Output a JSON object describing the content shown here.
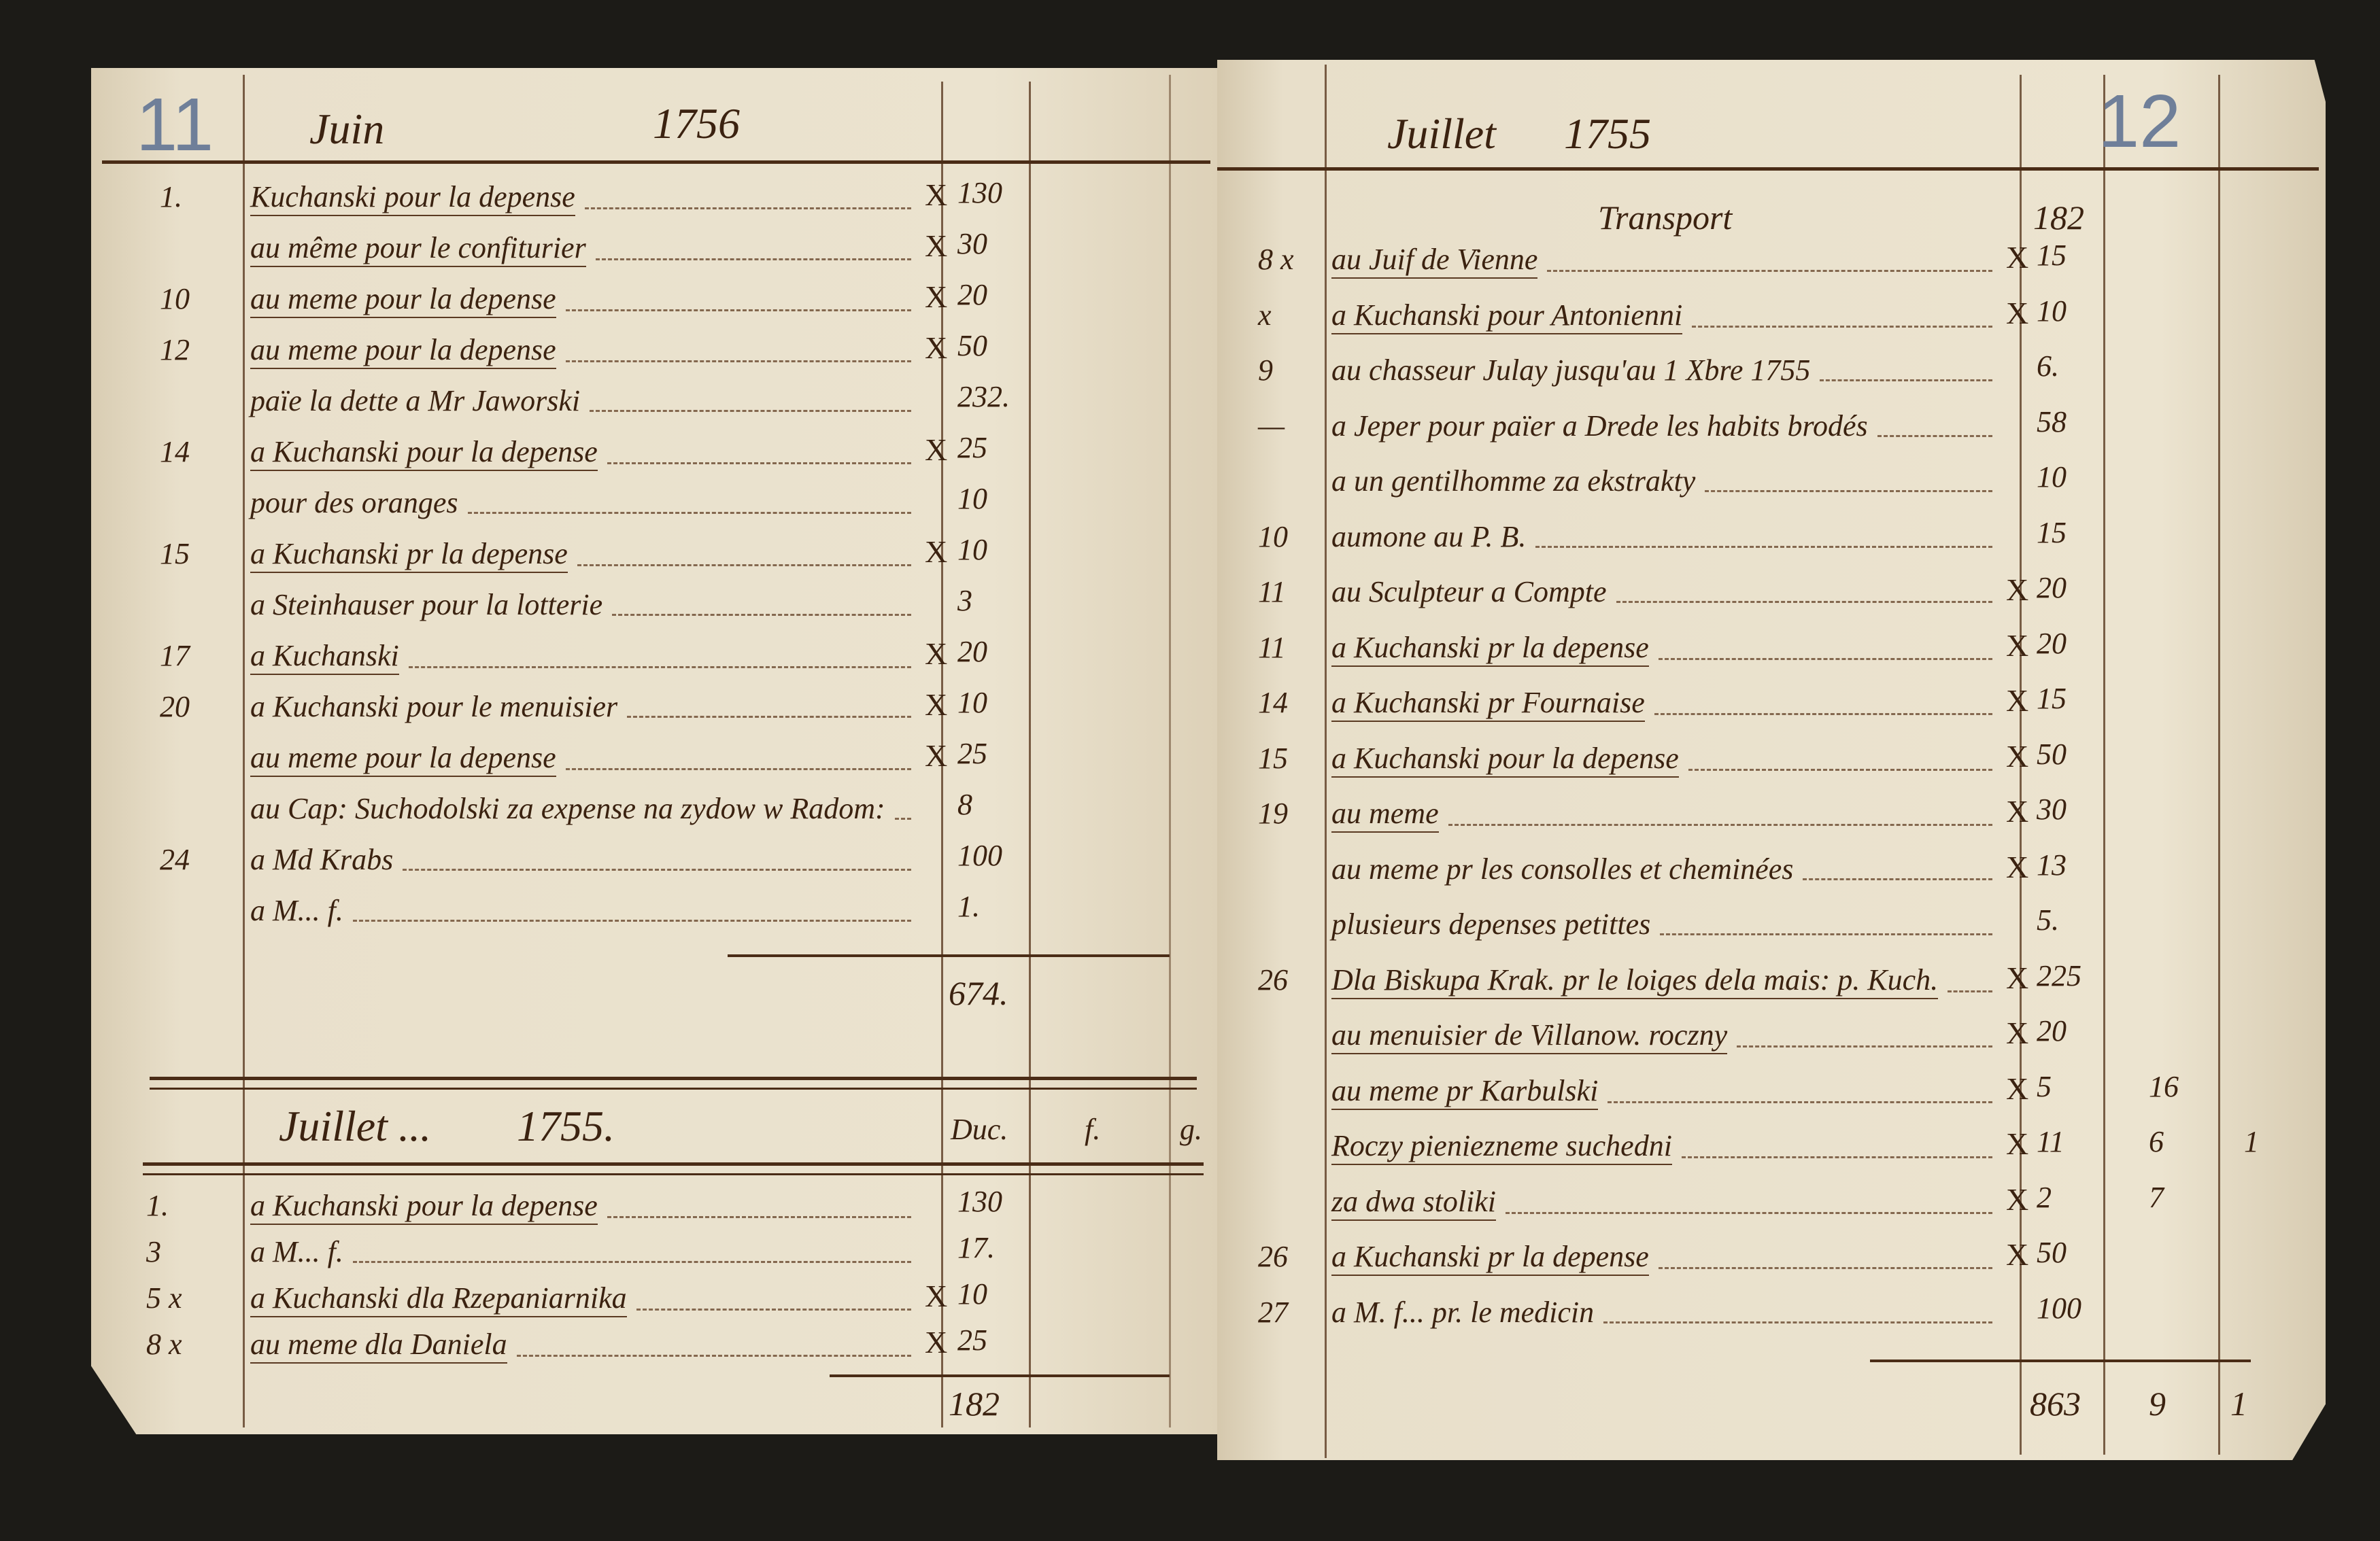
{
  "left_page": {
    "page_number": "11",
    "month": "Juin",
    "year": "1756",
    "rows": [
      {
        "date": "1.",
        "desc": "Kuchanski pour la depense",
        "check": "X",
        "amount": "130",
        "underlined": true
      },
      {
        "date": "",
        "desc": "au même pour le confiturier",
        "check": "X",
        "amount": "30",
        "underlined": true
      },
      {
        "date": "10",
        "desc": "au meme pour la depense",
        "check": "X",
        "amount": "20",
        "underlined": true
      },
      {
        "date": "12",
        "desc": "au meme pour la depense",
        "check": "X",
        "amount": "50",
        "underlined": true
      },
      {
        "date": "",
        "desc": "païe la dette a Mr Jaworski",
        "check": "",
        "amount": "232.",
        "underlined": false
      },
      {
        "date": "14",
        "desc": "a Kuchanski pour la depense",
        "check": "X",
        "amount": "25",
        "underlined": true
      },
      {
        "date": "",
        "desc": "pour des oranges",
        "check": "",
        "amount": "10",
        "underlined": false
      },
      {
        "date": "15",
        "desc": "a Kuchanski pr la depense",
        "check": "X",
        "amount": "10",
        "underlined": true
      },
      {
        "date": "",
        "desc": "a Steinhauser pour la lotterie",
        "check": "",
        "amount": "3",
        "underlined": false
      },
      {
        "date": "17",
        "desc": "a Kuchanski",
        "check": "X",
        "amount": "20",
        "underlined": true
      },
      {
        "date": "20",
        "desc": "a Kuchanski pour le menuisier",
        "check": "X",
        "amount": "10",
        "underlined": false
      },
      {
        "date": "",
        "desc": "au meme pour la depense",
        "check": "X",
        "amount": "25",
        "underlined": true
      },
      {
        "date": "",
        "desc": "au Cap: Suchodolski za expense na zydow w Radom:",
        "check": "",
        "amount": "8",
        "underlined": false
      },
      {
        "date": "24",
        "desc": "a Md Krabs",
        "check": "",
        "amount": "100",
        "underlined": false
      },
      {
        "date": "",
        "desc": "a M... f.",
        "check": "",
        "amount": "1.",
        "underlined": false
      }
    ],
    "total": "674.",
    "section2": {
      "month": "Juillet ...",
      "year": "1755.",
      "col_headers": [
        "Duc.",
        "f.",
        "g."
      ],
      "rows": [
        {
          "date": "1.",
          "desc": "a Kuchanski pour la depense",
          "check": "",
          "amount": "130",
          "underlined": true
        },
        {
          "date": "3",
          "desc": "a M... f.",
          "check": "",
          "amount": "17.",
          "underlined": false
        },
        {
          "date": "5 x",
          "desc": "a Kuchanski dla Rzepaniarnika",
          "check": "X",
          "amount": "10",
          "underlined": true
        },
        {
          "date": "8 x",
          "desc": "au meme dla Daniela",
          "check": "X",
          "amount": "25",
          "underlined": true
        }
      ],
      "total": "182"
    }
  },
  "right_page": {
    "page_number": "12",
    "month": "Juillet",
    "year": "1755",
    "transport_label": "Transport",
    "transport_amount": "182",
    "rows": [
      {
        "date": "8 x",
        "desc": "au Juif de Vienne",
        "check": "X",
        "amount": "15",
        "c2": "",
        "c3": "",
        "underlined": true
      },
      {
        "date": "x",
        "desc": "a Kuchanski pour Antonienni",
        "check": "X",
        "amount": "10",
        "c2": "",
        "c3": "",
        "underlined": true
      },
      {
        "date": "9",
        "desc": "au chasseur Julay jusqu'au 1 Xbre 1755",
        "check": "",
        "amount": "6.",
        "c2": "",
        "c3": "",
        "underlined": false
      },
      {
        "date": "—",
        "desc": "a Jeper pour païer a Drede les habits brodés",
        "check": "",
        "amount": "58",
        "c2": "",
        "c3": "",
        "underlined": false
      },
      {
        "date": "",
        "desc": "a un gentilhomme za ekstrakty",
        "check": "",
        "amount": "10",
        "c2": "",
        "c3": "",
        "underlined": false
      },
      {
        "date": "10",
        "desc": "aumone au P. B.",
        "check": "",
        "amount": "15",
        "c2": "",
        "c3": "",
        "underlined": false
      },
      {
        "date": "11",
        "desc": "au Sculpteur a Compte",
        "check": "X",
        "amount": "20",
        "c2": "",
        "c3": "",
        "underlined": false
      },
      {
        "date": "11",
        "desc": "a Kuchanski pr la depense",
        "check": "X",
        "amount": "20",
        "c2": "",
        "c3": "",
        "underlined": true
      },
      {
        "date": "14",
        "desc": "a Kuchanski pr Fournaise",
        "check": "X",
        "amount": "15",
        "c2": "",
        "c3": "",
        "underlined": true
      },
      {
        "date": "15",
        "desc": "a Kuchanski pour la depense",
        "check": "X",
        "amount": "50",
        "c2": "",
        "c3": "",
        "underlined": true
      },
      {
        "date": "19",
        "desc": "au meme",
        "check": "X",
        "amount": "30",
        "c2": "",
        "c3": "",
        "underlined": true
      },
      {
        "date": "",
        "desc": "au meme pr les consolles et cheminées",
        "check": "X",
        "amount": "13",
        "c2": "",
        "c3": "",
        "underlined": false
      },
      {
        "date": "",
        "desc": "plusieurs depenses petittes",
        "check": "",
        "amount": "5.",
        "c2": "",
        "c3": "",
        "underlined": false
      },
      {
        "date": "26",
        "desc": "Dla Biskupa Krak. pr le loiges dela mais: p. Kuch.",
        "check": "X",
        "amount": "225",
        "c2": "",
        "c3": "",
        "underlined": true
      },
      {
        "date": "",
        "desc": "au menuisier de Villanow. roczny",
        "check": "X",
        "amount": "20",
        "c2": "",
        "c3": "",
        "underlined": true
      },
      {
        "date": "",
        "desc": "au meme pr Karbulski",
        "check": "X",
        "amount": "5",
        "c2": "16",
        "c3": "",
        "underlined": true
      },
      {
        "date": "",
        "desc": "Roczy pieniezneme suchedni",
        "check": "X",
        "amount": "11",
        "c2": "6",
        "c3": "1",
        "underlined": true
      },
      {
        "date": "",
        "desc": "za dwa stoliki",
        "check": "X",
        "amount": "2",
        "c2": "7",
        "c3": "",
        "underlined": true
      },
      {
        "date": "26",
        "desc": "a Kuchanski pr la depense",
        "check": "X",
        "amount": "50",
        "c2": "",
        "c3": "",
        "underlined": true
      },
      {
        "date": "27",
        "desc": "a M. f... pr. le medicin",
        "check": "",
        "amount": "100",
        "c2": "",
        "c3": "",
        "underlined": false
      }
    ],
    "total": {
      "amount": "863",
      "c2": "9",
      "c3": "1"
    }
  },
  "colors": {
    "ink": "#3b2210",
    "paper": "#e9e0cb",
    "pencil": "#6f7f99",
    "background": "#1c1b17"
  }
}
